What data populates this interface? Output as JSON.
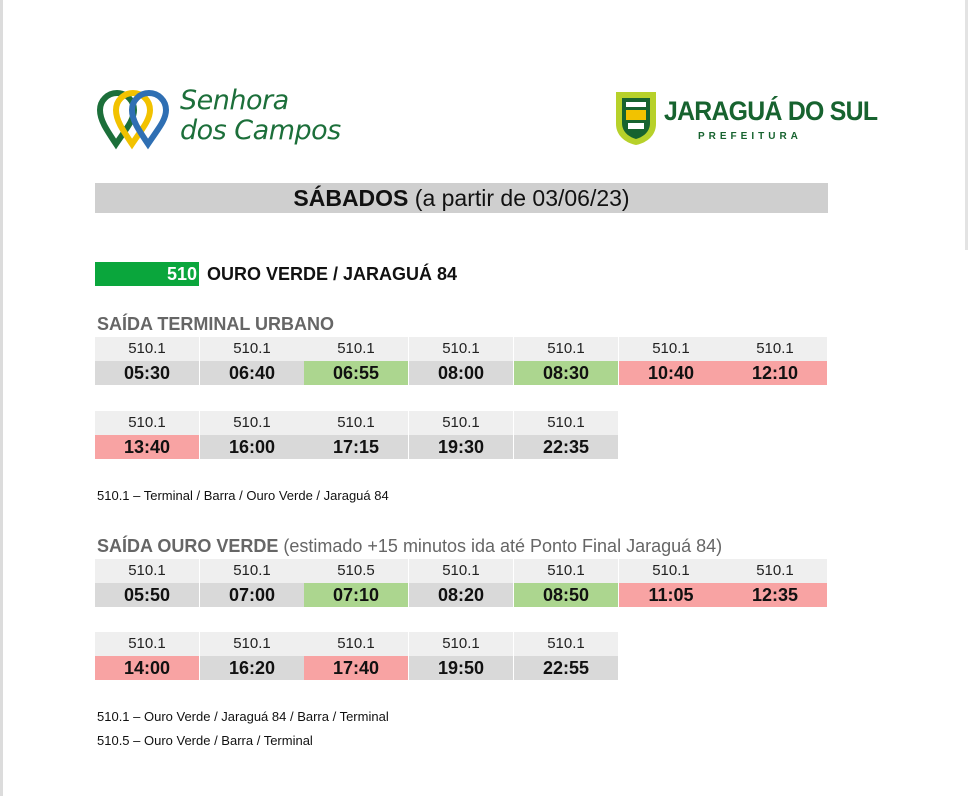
{
  "header": {
    "left_logo": {
      "line1": "Senhora",
      "line2": "dos Campos",
      "icon": "map-pin-rings-logo-icon",
      "colors": [
        "#1c6f3a",
        "#f2c200",
        "#2f6fb3"
      ]
    },
    "right_logo": {
      "city": "JARAGUÁ DO SUL",
      "subtitle": "PREFEITURA",
      "icon": "coat-of-arms-shield-icon",
      "color": "#17632f"
    }
  },
  "title": {
    "main": "SÁBADOS",
    "sub": "(a partir de 03/06/23)"
  },
  "route": {
    "number": "510",
    "name": "OURO VERDE / JARAGUÁ 84",
    "color": "#0aa63c"
  },
  "legend_colors": {
    "gray": "#d9d9d9",
    "green": "#acd68f",
    "red": "#f8a3a3"
  },
  "sections": [
    {
      "title_bold": "SAÍDA TERMINAL URBANO",
      "title_rest": "",
      "rows": [
        [
          {
            "code": "510.1",
            "time": "05:30",
            "color": "gray"
          },
          {
            "code": "510.1",
            "time": "06:40",
            "color": "gray"
          },
          {
            "code": "510.1",
            "time": "06:55",
            "color": "green"
          },
          {
            "code": "510.1",
            "time": "08:00",
            "color": "gray"
          },
          {
            "code": "510.1",
            "time": "08:30",
            "color": "green"
          },
          {
            "code": "510.1",
            "time": "10:40",
            "color": "red"
          },
          {
            "code": "510.1",
            "time": "12:10",
            "color": "red"
          }
        ],
        [
          {
            "code": "510.1",
            "time": "13:40",
            "color": "red"
          },
          {
            "code": "510.1",
            "time": "16:00",
            "color": "gray"
          },
          {
            "code": "510.1",
            "time": "17:15",
            "color": "gray"
          },
          {
            "code": "510.1",
            "time": "19:30",
            "color": "gray"
          },
          {
            "code": "510.1",
            "time": "22:35",
            "color": "gray"
          }
        ]
      ],
      "notes": [
        "510.1 – Terminal / Barra / Ouro Verde / Jaraguá 84"
      ]
    },
    {
      "title_bold": "SAÍDA OURO VERDE",
      "title_rest": "(estimado +15 minutos ida até Ponto Final Jaraguá 84)",
      "rows": [
        [
          {
            "code": "510.1",
            "time": "05:50",
            "color": "gray"
          },
          {
            "code": "510.1",
            "time": "07:00",
            "color": "gray"
          },
          {
            "code": "510.5",
            "time": "07:10",
            "color": "green"
          },
          {
            "code": "510.1",
            "time": "08:20",
            "color": "gray"
          },
          {
            "code": "510.1",
            "time": "08:50",
            "color": "green"
          },
          {
            "code": "510.1",
            "time": "11:05",
            "color": "red"
          },
          {
            "code": "510.1",
            "time": "12:35",
            "color": "red"
          }
        ],
        [
          {
            "code": "510.1",
            "time": "14:00",
            "color": "red"
          },
          {
            "code": "510.1",
            "time": "16:20",
            "color": "gray"
          },
          {
            "code": "510.1",
            "time": "17:40",
            "color": "red"
          },
          {
            "code": "510.1",
            "time": "19:50",
            "color": "gray"
          },
          {
            "code": "510.1",
            "time": "22:55",
            "color": "gray"
          }
        ]
      ],
      "notes": [
        "510.1 – Ouro Verde / Jaraguá 84 / Barra / Terminal",
        "510.5 – Ouro Verde / Barra / Terminal"
      ]
    }
  ]
}
